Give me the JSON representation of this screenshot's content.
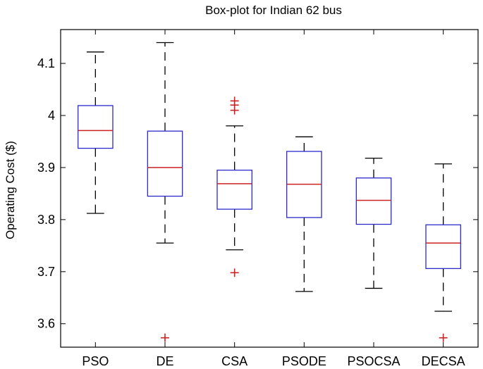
{
  "chart_data": {
    "type": "box",
    "title": "Box-plot for Indian 62 bus",
    "xlabel": "",
    "ylabel": "Operating Cost ($)",
    "ylim": [
      3.555,
      4.165
    ],
    "yticks": [
      3.6,
      3.7,
      3.8,
      3.9,
      4.0,
      4.1
    ],
    "ytick_labels": [
      "3.6",
      "3.7",
      "3.8",
      "3.9",
      "4",
      "4.1"
    ],
    "grid": false,
    "legend": "none",
    "colors": {
      "box": "#2b2bcc",
      "median": "#cc2222",
      "whisker": "#000000",
      "outlier": "#cc2222"
    },
    "categories": [
      "PSO",
      "DE",
      "CSA",
      "PSODE",
      "PSOCSA",
      "DECSA"
    ],
    "series": [
      {
        "category": "PSO",
        "whisker_low": 3.812,
        "q1": 3.937,
        "median": 3.971,
        "q3": 4.019,
        "whisker_high": 4.122,
        "outliers": []
      },
      {
        "category": "DE",
        "whisker_low": 3.755,
        "q1": 3.845,
        "median": 3.9,
        "q3": 3.97,
        "whisker_high": 4.14,
        "outliers": [
          3.573
        ]
      },
      {
        "category": "CSA",
        "whisker_low": 3.742,
        "q1": 3.82,
        "median": 3.869,
        "q3": 3.895,
        "whisker_high": 3.98,
        "outliers": [
          3.698,
          4.01,
          4.02,
          4.028
        ]
      },
      {
        "category": "PSODE",
        "whisker_low": 3.662,
        "q1": 3.804,
        "median": 3.868,
        "q3": 3.931,
        "whisker_high": 3.959,
        "outliers": []
      },
      {
        "category": "PSOCSA",
        "whisker_low": 3.668,
        "q1": 3.791,
        "median": 3.837,
        "q3": 3.88,
        "whisker_high": 3.918,
        "outliers": []
      },
      {
        "category": "DECSA",
        "whisker_low": 3.624,
        "q1": 3.706,
        "median": 3.755,
        "q3": 3.79,
        "whisker_high": 3.907,
        "outliers": [
          3.573
        ]
      }
    ]
  }
}
